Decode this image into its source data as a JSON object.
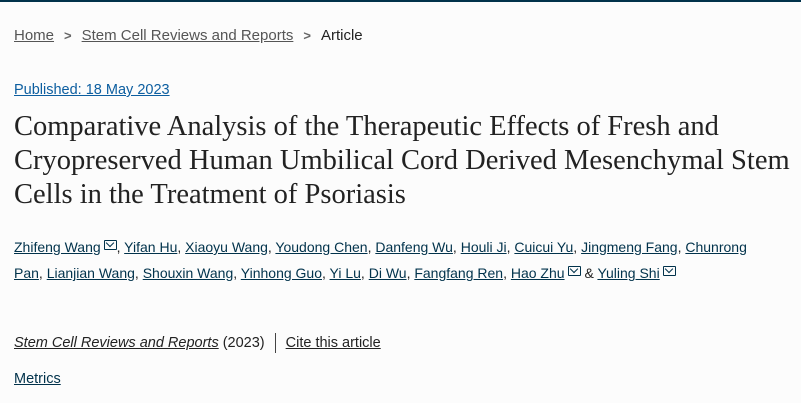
{
  "breadcrumb": {
    "items": [
      {
        "label": "Home"
      },
      {
        "label": "Stem Cell Reviews and Reports"
      }
    ],
    "current": "Article"
  },
  "published": "Published: 18 May 2023",
  "title": "Comparative Analysis of the Therapeutic Effects of Fresh and Cryopreserved Human Umbilical Cord Derived Mesenchymal Stem Cells in the Treatment of Psoriasis",
  "authors": [
    {
      "name": "Zhifeng Wang",
      "email": true
    },
    {
      "name": "Yifan Hu"
    },
    {
      "name": "Xiaoyu Wang"
    },
    {
      "name": "Youdong Chen"
    },
    {
      "name": "Danfeng Wu"
    },
    {
      "name": "Houli Ji"
    },
    {
      "name": "Cuicui Yu"
    },
    {
      "name": "Jingmeng Fang"
    },
    {
      "name": "Chunrong Pan"
    },
    {
      "name": "Lianjian Wang"
    },
    {
      "name": "Shouxin Wang"
    },
    {
      "name": "Yinhong Guo"
    },
    {
      "name": "Yi Lu"
    },
    {
      "name": "Di Wu"
    },
    {
      "name": "Fangfang Ren"
    },
    {
      "name": "Hao Zhu",
      "email": true
    },
    {
      "name": "Yuling Shi",
      "email": true
    }
  ],
  "citation": {
    "journal": "Stem Cell Reviews and Reports",
    "year": "(2023)",
    "cite_label": "Cite this article"
  },
  "metrics_label": "Metrics"
}
